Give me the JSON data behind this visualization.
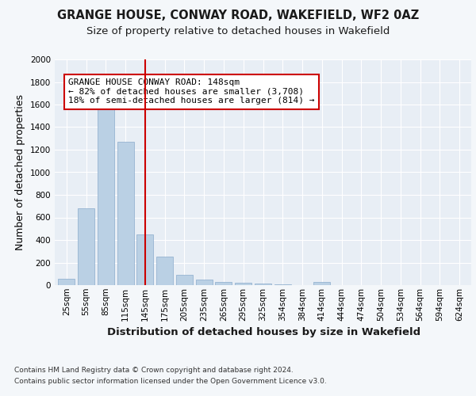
{
  "title": "GRANGE HOUSE, CONWAY ROAD, WAKEFIELD, WF2 0AZ",
  "subtitle": "Size of property relative to detached houses in Wakefield",
  "xlabel": "Distribution of detached houses by size in Wakefield",
  "ylabel": "Number of detached properties",
  "footer_line1": "Contains HM Land Registry data © Crown copyright and database right 2024.",
  "footer_line2": "Contains public sector information licensed under the Open Government Licence v3.0.",
  "annotation_line1": "GRANGE HOUSE CONWAY ROAD: 148sqm",
  "annotation_line2": "← 82% of detached houses are smaller (3,708)",
  "annotation_line3": "18% of semi-detached houses are larger (814) →",
  "bar_color": "#bad0e4",
  "bar_edge_color": "#8aabcc",
  "red_line_x": 4,
  "ylim": [
    0,
    2000
  ],
  "yticks": [
    0,
    200,
    400,
    600,
    800,
    1000,
    1200,
    1400,
    1600,
    1800,
    2000
  ],
  "categories": [
    0,
    1,
    2,
    3,
    4,
    5,
    6,
    7,
    8,
    9,
    10,
    11,
    12,
    13,
    14,
    15,
    16,
    17,
    18,
    19,
    20
  ],
  "tick_labels": [
    "25sqm",
    "55sqm",
    "85sqm",
    "115sqm",
    "145sqm",
    "175sqm",
    "205sqm",
    "235sqm",
    "265sqm",
    "295sqm",
    "325sqm",
    "354sqm",
    "384sqm",
    "414sqm",
    "444sqm",
    "474sqm",
    "504sqm",
    "534sqm",
    "564sqm",
    "594sqm",
    "624sqm"
  ],
  "values": [
    55,
    680,
    1630,
    1270,
    450,
    255,
    90,
    50,
    30,
    20,
    15,
    10,
    0,
    25,
    0,
    0,
    0,
    0,
    0,
    0,
    0
  ],
  "bin_width": 0.85,
  "background_color": "#f4f7fa",
  "plot_bg_color": "#e8eef5",
  "grid_color": "#ffffff",
  "annotation_box_color": "#ffffff",
  "annotation_border_color": "#cc0000",
  "red_line_color": "#cc0000",
  "title_fontsize": 10.5,
  "subtitle_fontsize": 9.5,
  "axis_label_fontsize": 9.5,
  "tick_fontsize": 7.5,
  "annotation_fontsize": 8,
  "ylabel_fontsize": 9
}
